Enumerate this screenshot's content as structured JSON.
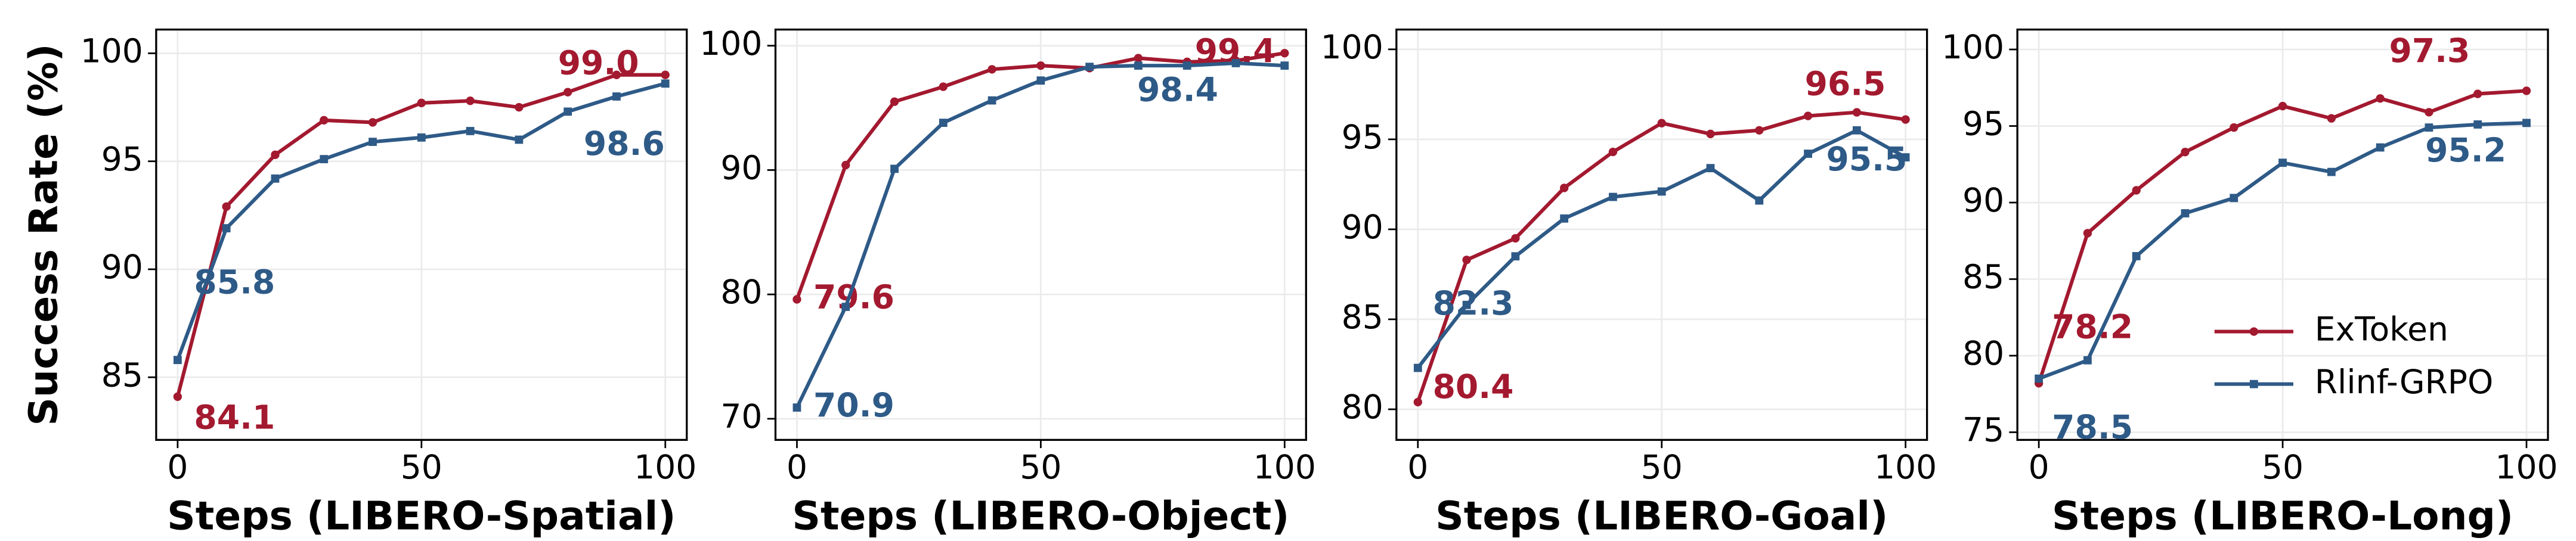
{
  "chart_data": [
    {
      "type": "line",
      "xlabel": "Steps (LIBERO-Spatial)",
      "ylabel": "Success Rate (%)",
      "x": [
        0,
        10,
        20,
        30,
        40,
        50,
        60,
        70,
        80,
        90,
        100
      ],
      "series": [
        {
          "color": "#a3192f",
          "values": [
            84.1,
            92.9,
            95.3,
            96.9,
            96.8,
            97.7,
            97.8,
            97.5,
            98.2,
            99.0,
            99.0
          ],
          "value_labels": [
            "84.1",
            null,
            null,
            null,
            null,
            null,
            null,
            null,
            null,
            "99.0",
            null
          ]
        },
        {
          "color": "#2e5a87",
          "values": [
            85.8,
            91.9,
            94.2,
            95.1,
            95.9,
            96.1,
            96.4,
            96.0,
            97.3,
            98.0,
            98.6
          ],
          "value_labels": [
            "85.8",
            null,
            null,
            null,
            null,
            null,
            null,
            null,
            null,
            null,
            "98.6"
          ]
        }
      ],
      "xlim": [
        -4.4,
        104.4
      ],
      "xticks": [
        0,
        50,
        100
      ],
      "ylim": [
        82.1,
        101.1
      ],
      "yticks": [
        85,
        90,
        95,
        100
      ],
      "grid": true
    },
    {
      "type": "line",
      "xlabel": "Steps (LIBERO-Object)",
      "x": [
        0,
        10,
        20,
        30,
        40,
        50,
        60,
        70,
        80,
        90,
        100
      ],
      "series": [
        {
          "color": "#a3192f",
          "values": [
            79.6,
            90.4,
            95.5,
            96.7,
            98.1,
            98.4,
            98.2,
            99.0,
            98.7,
            98.8,
            99.4
          ],
          "value_labels": [
            "79.6",
            null,
            null,
            null,
            null,
            null,
            null,
            null,
            null,
            null,
            "99.4"
          ]
        },
        {
          "color": "#2e5a87",
          "values": [
            70.9,
            79.0,
            90.1,
            93.8,
            95.6,
            97.2,
            98.3,
            98.4,
            98.4,
            98.6,
            98.4
          ],
          "value_labels": [
            "70.9",
            null,
            null,
            null,
            null,
            null,
            null,
            "98.4",
            null,
            null,
            null
          ]
        }
      ],
      "xlim": [
        -4.4,
        104.4
      ],
      "xticks": [
        0,
        50,
        100
      ],
      "ylim": [
        68.3,
        101.3
      ],
      "yticks": [
        70,
        80,
        90,
        100
      ],
      "grid": true
    },
    {
      "type": "line",
      "xlabel": "Steps (LIBERO-Goal)",
      "x": [
        0,
        10,
        20,
        30,
        40,
        50,
        60,
        70,
        80,
        90,
        100
      ],
      "series": [
        {
          "color": "#a3192f",
          "values": [
            80.4,
            88.3,
            89.5,
            92.3,
            94.3,
            95.9,
            95.3,
            95.5,
            96.3,
            96.5,
            96.1
          ],
          "value_labels": [
            "80.4",
            null,
            null,
            null,
            null,
            null,
            null,
            null,
            null,
            "96.5",
            null
          ]
        },
        {
          "color": "#2e5a87",
          "values": [
            82.3,
            85.8,
            88.5,
            90.6,
            91.8,
            92.1,
            93.4,
            91.6,
            94.2,
            95.5,
            94.0
          ],
          "value_labels": [
            "82.3",
            null,
            null,
            null,
            null,
            null,
            null,
            null,
            null,
            "95.5",
            null
          ]
        }
      ],
      "xlim": [
        -4.4,
        104.4
      ],
      "xticks": [
        0,
        50,
        100
      ],
      "ylim": [
        78.3,
        101.1
      ],
      "yticks": [
        80,
        85,
        90,
        95,
        100
      ],
      "grid": true
    },
    {
      "type": "line",
      "xlabel": "Steps (LIBERO-Long)",
      "x": [
        0,
        10,
        20,
        30,
        40,
        50,
        60,
        70,
        80,
        90,
        100
      ],
      "series": [
        {
          "name": "ExToken",
          "color": "#a3192f",
          "values": [
            78.2,
            88.0,
            90.8,
            93.3,
            94.9,
            96.3,
            95.5,
            96.8,
            95.9,
            97.1,
            97.3
          ],
          "value_labels": [
            "78.2",
            null,
            null,
            null,
            null,
            null,
            null,
            null,
            null,
            null,
            "97.3"
          ]
        },
        {
          "name": "Rlinf-GRPO",
          "color": "#2e5a87",
          "values": [
            78.5,
            79.7,
            86.5,
            89.3,
            90.3,
            92.6,
            92.0,
            93.6,
            94.9,
            95.1,
            95.2
          ],
          "value_labels": [
            "78.5",
            null,
            null,
            null,
            null,
            null,
            null,
            null,
            null,
            null,
            "95.2"
          ]
        }
      ],
      "xlim": [
        -4.4,
        104.4
      ],
      "xticks": [
        0,
        50,
        100
      ],
      "ylim": [
        74.5,
        101.3
      ],
      "yticks": [
        75,
        80,
        85,
        90,
        95,
        100
      ],
      "grid": true,
      "legend": "lower right"
    }
  ]
}
